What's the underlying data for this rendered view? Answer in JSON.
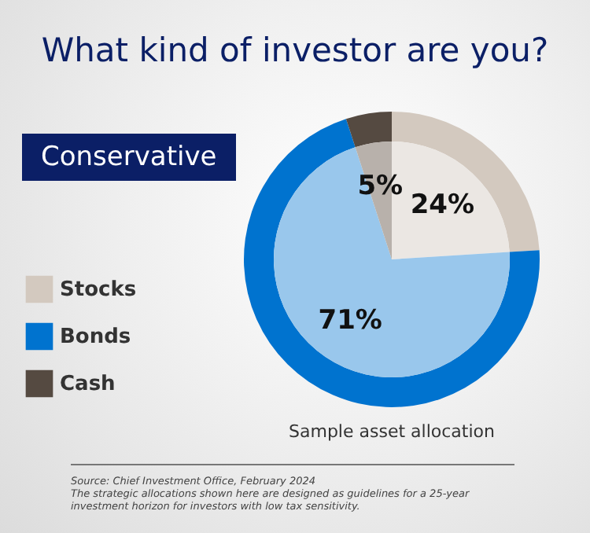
{
  "chart_data": {
    "type": "donut",
    "title": "What kind of investor are you?",
    "subtitle": "Conservative",
    "categories": [
      "Stocks",
      "Bonds",
      "Cash"
    ],
    "series": [
      {
        "colors": [
          "#d3c9bf",
          "#0073cf",
          "#554a41"
        ],
        "values": [
          24,
          71,
          5
        ]
      },
      {
        "type": "pie",
        "colors": [
          "#ebe7e3",
          "#99c7ec",
          "#b8b1ab"
        ],
        "values": [
          24,
          71,
          5
        ],
        "value_labels": [
          "24%",
          "71%",
          "5%"
        ]
      }
    ],
    "legend": "left",
    "annotations": [
      "Sample asset allocation",
      "Source: Chief Investment Office, February 2024",
      "The strategic allocations shown here are designed as guidelines for a 25-year investment horizon for investors with low tax sensitivity."
    ]
  }
}
